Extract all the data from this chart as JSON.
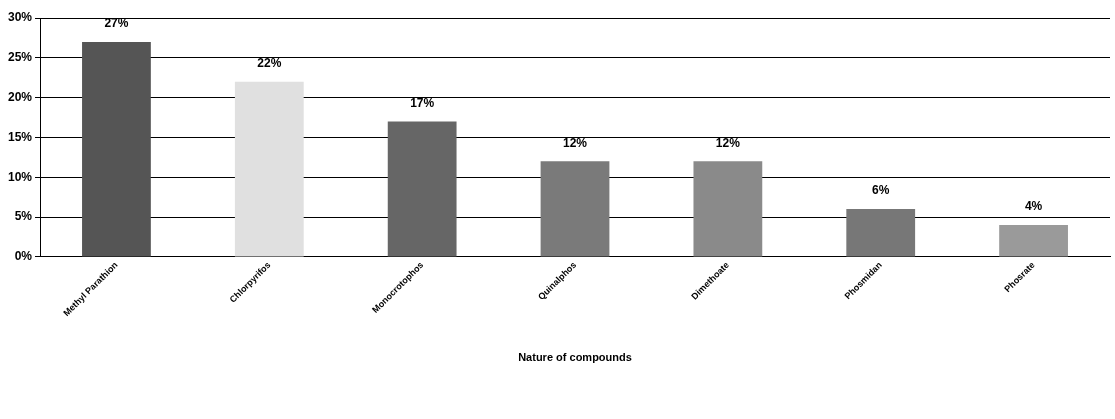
{
  "chart_data": {
    "type": "bar",
    "xlabel": "Nature of compounds",
    "categories": [
      "Methyl Parathion",
      "Chlorpyrifos",
      "Monocrotophos",
      "Quinalphos",
      "Dimethoate",
      "Phosmidan",
      "Phosrate"
    ],
    "values": [
      27,
      22,
      17,
      12,
      12,
      6,
      4
    ],
    "value_labels": [
      "27%",
      "22%",
      "17%",
      "12%",
      "12%",
      "6%",
      "4%"
    ],
    "colors": [
      "#555555",
      "#e0e0e0",
      "#666666",
      "#7a7a7a",
      "#8a8a8a",
      "#777777",
      "#9a9a9a"
    ],
    "ylim": [
      0,
      30
    ],
    "yticks": [
      {
        "value": 0,
        "label": "0%"
      },
      {
        "value": 5,
        "label": "5%"
      },
      {
        "value": 10,
        "label": "10%"
      },
      {
        "value": 15,
        "label": "15%"
      },
      {
        "value": 20,
        "label": "20%"
      },
      {
        "value": 25,
        "label": "25%"
      },
      {
        "value": 30,
        "label": "30%"
      }
    ],
    "grid": "y",
    "legend": false
  }
}
